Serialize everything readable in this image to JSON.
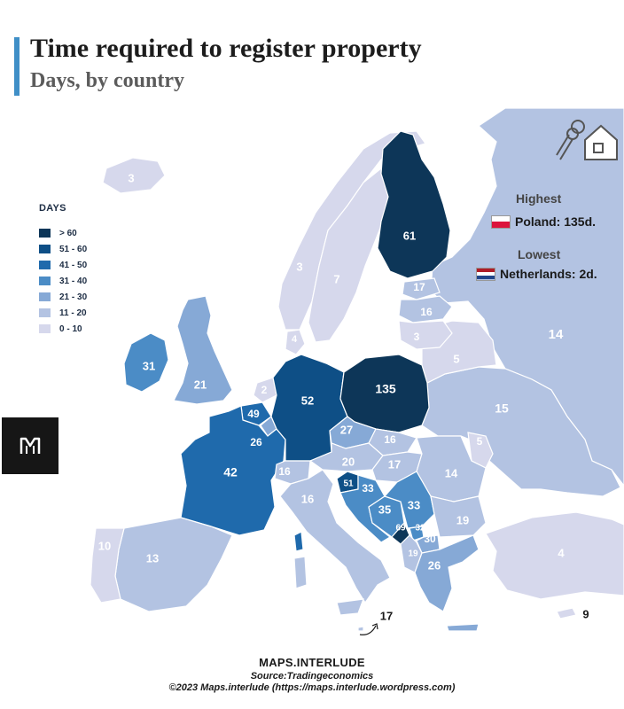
{
  "header": {
    "title": "Time required to register property",
    "subtitle": "Days, by country"
  },
  "legend": {
    "title": "DAYS",
    "items": [
      {
        "label": "> 60",
        "color": "#0d3658"
      },
      {
        "label": "51 - 60",
        "color": "#0e4f86"
      },
      {
        "label": "41 - 50",
        "color": "#1f6aac"
      },
      {
        "label": "31 - 40",
        "color": "#4b8cc6"
      },
      {
        "label": "21 - 30",
        "color": "#86a9d6"
      },
      {
        "label": "11 - 20",
        "color": "#b3c3e2"
      },
      {
        "label": "0 - 10",
        "color": "#d6d8ec"
      }
    ]
  },
  "callouts": {
    "highest_label": "Highest",
    "highest_value": "Poland: 135d.",
    "lowest_label": "Lowest",
    "lowest_value": "Netherlands: 2d."
  },
  "colors": {
    "sea": "#ffffff",
    "land_outside": "#e4e5ea",
    "label_light": "#ffffff",
    "label_dark": "#1a1a1a"
  },
  "map_labels": [
    {
      "id": "iceland",
      "value": "3",
      "color": "#d6d8ec"
    },
    {
      "id": "norway",
      "value": "3",
      "color": "#d6d8ec"
    },
    {
      "id": "sweden",
      "value": "7",
      "color": "#d6d8ec"
    },
    {
      "id": "finland",
      "value": "61",
      "color": "#0d3658"
    },
    {
      "id": "estonia",
      "value": "17",
      "color": "#b3c3e2"
    },
    {
      "id": "latvia",
      "value": "16",
      "color": "#b3c3e2"
    },
    {
      "id": "lithuania",
      "value": "3",
      "color": "#d6d8ec"
    },
    {
      "id": "belarus",
      "value": "5",
      "color": "#d6d8ec"
    },
    {
      "id": "russia",
      "value": "14",
      "color": "#b3c3e2"
    },
    {
      "id": "ukraine",
      "value": "15",
      "color": "#b3c3e2"
    },
    {
      "id": "moldova",
      "value": "5",
      "color": "#d6d8ec"
    },
    {
      "id": "denmark",
      "value": "4",
      "color": "#d6d8ec"
    },
    {
      "id": "ireland",
      "value": "31",
      "color": "#4b8cc6"
    },
    {
      "id": "uk",
      "value": "21",
      "color": "#86a9d6"
    },
    {
      "id": "netherlands",
      "value": "2",
      "color": "#d6d8ec"
    },
    {
      "id": "belgium",
      "value": "49",
      "color": "#1f6aac"
    },
    {
      "id": "luxembourg",
      "value": "26",
      "color": "#86a9d6"
    },
    {
      "id": "germany",
      "value": "52",
      "color": "#0e4f86"
    },
    {
      "id": "poland",
      "value": "135",
      "color": "#0d3658"
    },
    {
      "id": "czechia",
      "value": "27",
      "color": "#86a9d6"
    },
    {
      "id": "slovakia",
      "value": "16",
      "color": "#b3c3e2"
    },
    {
      "id": "austria",
      "value": "20",
      "color": "#b3c3e2"
    },
    {
      "id": "hungary",
      "value": "17",
      "color": "#b3c3e2"
    },
    {
      "id": "romania",
      "value": "14",
      "color": "#b3c3e2"
    },
    {
      "id": "france",
      "value": "42",
      "color": "#1f6aac"
    },
    {
      "id": "switzerland",
      "value": "16",
      "color": "#b3c3e2"
    },
    {
      "id": "italy",
      "value": "16",
      "color": "#b3c3e2"
    },
    {
      "id": "slovenia",
      "value": "51",
      "color": "#0e4f86"
    },
    {
      "id": "croatia",
      "value": "33",
      "color": "#4b8cc6"
    },
    {
      "id": "bosnia",
      "value": "35",
      "color": "#4b8cc6"
    },
    {
      "id": "serbia",
      "value": "33",
      "color": "#4b8cc6"
    },
    {
      "id": "montenegro",
      "value": "69",
      "color": "#0d3658"
    },
    {
      "id": "kosovo",
      "value": "32",
      "color": "#4b8cc6"
    },
    {
      "id": "north_macedonia",
      "value": "30",
      "color": "#86a9d6"
    },
    {
      "id": "albania",
      "value": "19",
      "color": "#b3c3e2"
    },
    {
      "id": "bulgaria",
      "value": "19",
      "color": "#b3c3e2"
    },
    {
      "id": "greece",
      "value": "26",
      "color": "#86a9d6"
    },
    {
      "id": "turkey",
      "value": "4",
      "color": "#d6d8ec"
    },
    {
      "id": "portugal",
      "value": "10",
      "color": "#d6d8ec"
    },
    {
      "id": "spain",
      "value": "13",
      "color": "#b3c3e2"
    },
    {
      "id": "malta",
      "value": "17",
      "color": "#b3c3e2"
    },
    {
      "id": "cyprus",
      "value": "9",
      "color": "#d6d8ec"
    }
  ],
  "footer": {
    "brand": "MAPS.INTERLUDE",
    "source": "Source:Tradingeconomics",
    "copyright": "©2023 Maps.interlude (https://maps.interlude.wordpress.com)"
  }
}
